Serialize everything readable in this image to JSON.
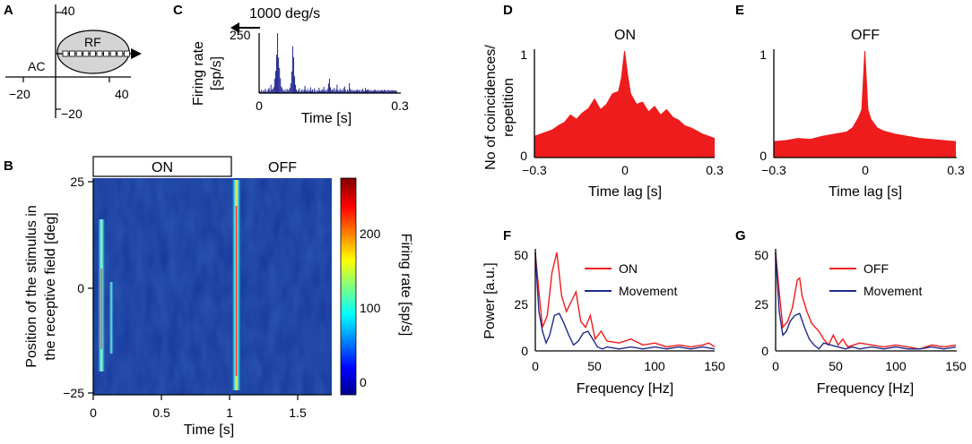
{
  "panel_letters": [
    "A",
    "B",
    "C",
    "D",
    "E",
    "F",
    "G"
  ],
  "colors": {
    "red": "#ee1c1c",
    "navy": "#1f2a8a",
    "hist": "#2b2f96",
    "rf_fill": "#d4d4d4"
  },
  "panel_a": {
    "rf_label": "RF",
    "ac_label": "AC",
    "x_ticks": [
      "−20",
      "40"
    ],
    "y_ticks": [
      "40",
      "−20"
    ]
  },
  "chart_data": [
    {
      "id": "C",
      "type": "bar",
      "title": "1000 deg/s",
      "ylabel": "Firing rate [sp/s]",
      "ylabel_lines": [
        "Firing rate",
        "[sp/s]"
      ],
      "xlabel": "Time [s]",
      "xlim": [
        0,
        0.3
      ],
      "ylim": [
        0,
        250
      ],
      "x_ticks": [
        "0",
        "0.3"
      ],
      "y_ticks": [
        "250"
      ],
      "bin_width": 0.002,
      "values": [
        8,
        6,
        14,
        5,
        12,
        7,
        18,
        10,
        4,
        15,
        22,
        9,
        35,
        14,
        18,
        25,
        60,
        92,
        160,
        250,
        148,
        105,
        62,
        28,
        20,
        12,
        8,
        15,
        5,
        18,
        10,
        14,
        22,
        40,
        90,
        195,
        150,
        70,
        35,
        15,
        8,
        12,
        20,
        5,
        10,
        16,
        6,
        14,
        30,
        12,
        8,
        18,
        7,
        12,
        24,
        9,
        15,
        6,
        20,
        10,
        5,
        13,
        8,
        22,
        11,
        7,
        16,
        12,
        26,
        9,
        14,
        8,
        18,
        40,
        60,
        24,
        10,
        16,
        12,
        22,
        8,
        15,
        35,
        12,
        7,
        18,
        10,
        14,
        9,
        20,
        28,
        12,
        6,
        15,
        8,
        42,
        18,
        10,
        14,
        8,
        12,
        10,
        9,
        15,
        12,
        10,
        14,
        6,
        12,
        18,
        10,
        8,
        22,
        12,
        14,
        16,
        10,
        13,
        9,
        11,
        8,
        12,
        15,
        10,
        9,
        14,
        8,
        12,
        10,
        13,
        11,
        9,
        15,
        10,
        12,
        8,
        14,
        11,
        10,
        12,
        9,
        13,
        10,
        12,
        11,
        9
      ]
    },
    {
      "id": "B",
      "type": "heatmap",
      "header_labels": [
        "ON",
        "OFF"
      ],
      "xlabel": "Time [s]",
      "ylabel": "Position of the stimulus in the receptive field [deg]",
      "ylabel_lines": [
        "Position of the stimulus in",
        "the receptive field [deg]"
      ],
      "xlim": [
        0,
        1.75
      ],
      "ylim": [
        -25,
        25
      ],
      "x_ticks": [
        "0",
        "0.5",
        "1",
        "1.5"
      ],
      "y_ticks": [
        "25",
        "0",
        "−25"
      ],
      "colorbar_label": "Firing rate [sp/s]",
      "colorbar_range": [
        -10,
        290
      ],
      "colorbar_ticks": [
        "200",
        "100",
        "0"
      ],
      "on_response_time": 0.06,
      "off_response_time": 1.05
    },
    {
      "id": "D",
      "type": "area",
      "title": "ON",
      "xlabel": "Time lag [s]",
      "ylabel": "No of coincidences/ repetition",
      "ylabel_lines": [
        "No of coincidences/",
        "repetition"
      ],
      "xlim": [
        -0.3,
        0.3
      ],
      "ylim": [
        0,
        1
      ],
      "x_ticks": [
        "−0.3",
        "0",
        "0.3"
      ],
      "y_ticks": [
        "1",
        "0"
      ],
      "x": [
        -0.3,
        -0.28,
        -0.26,
        -0.24,
        -0.22,
        -0.2,
        -0.18,
        -0.16,
        -0.14,
        -0.12,
        -0.1,
        -0.08,
        -0.06,
        -0.04,
        -0.02,
        -0.01,
        0,
        0.01,
        0.02,
        0.04,
        0.06,
        0.08,
        0.1,
        0.12,
        0.14,
        0.16,
        0.18,
        0.2,
        0.22,
        0.24,
        0.26,
        0.28,
        0.3
      ],
      "y": [
        0.2,
        0.22,
        0.24,
        0.26,
        0.3,
        0.33,
        0.4,
        0.36,
        0.42,
        0.46,
        0.55,
        0.45,
        0.5,
        0.6,
        0.62,
        0.75,
        1.0,
        0.78,
        0.6,
        0.5,
        0.52,
        0.43,
        0.48,
        0.4,
        0.45,
        0.38,
        0.35,
        0.3,
        0.28,
        0.25,
        0.22,
        0.2,
        0.18
      ]
    },
    {
      "id": "E",
      "type": "area",
      "title": "OFF",
      "xlabel": "Time lag [s]",
      "xlim": [
        -0.3,
        0.3
      ],
      "ylim": [
        0,
        1
      ],
      "x_ticks": [
        "−0.3",
        "0",
        "0.3"
      ],
      "y_ticks": [
        "1",
        "0"
      ],
      "x": [
        -0.3,
        -0.26,
        -0.22,
        -0.18,
        -0.14,
        -0.1,
        -0.06,
        -0.04,
        -0.02,
        -0.01,
        0,
        0.01,
        0.02,
        0.04,
        0.06,
        0.1,
        0.14,
        0.18,
        0.22,
        0.26,
        0.3
      ],
      "y": [
        0.15,
        0.16,
        0.18,
        0.17,
        0.2,
        0.22,
        0.24,
        0.28,
        0.38,
        0.45,
        1.0,
        0.45,
        0.36,
        0.28,
        0.25,
        0.22,
        0.2,
        0.18,
        0.17,
        0.16,
        0.15
      ]
    },
    {
      "id": "F",
      "type": "line",
      "xlabel": "Frequency [Hz]",
      "ylabel": "Power [a.u.]",
      "xlim": [
        0,
        150
      ],
      "ylim": [
        0,
        50
      ],
      "x_ticks": [
        "0",
        "50",
        "100",
        "150"
      ],
      "y_ticks": [
        "50",
        "25",
        "0"
      ],
      "series": [
        {
          "name": "ON",
          "color": "#ee1c1c",
          "x": [
            0,
            3,
            6,
            10,
            14,
            18,
            22,
            26,
            30,
            34,
            38,
            42,
            46,
            50,
            55,
            60,
            70,
            80,
            90,
            100,
            110,
            120,
            130,
            140,
            145,
            150
          ],
          "y": [
            50,
            30,
            12,
            18,
            40,
            50,
            28,
            20,
            25,
            30,
            15,
            12,
            18,
            6,
            10,
            5,
            4,
            6,
            3,
            4,
            2,
            3,
            2,
            3,
            4,
            2
          ]
        },
        {
          "name": "Movement",
          "color": "#1f2a8a",
          "x": [
            0,
            3,
            6,
            9,
            12,
            16,
            20,
            24,
            28,
            32,
            36,
            40,
            44,
            48,
            52,
            56,
            60,
            70,
            80,
            90,
            100,
            110,
            120,
            130,
            140,
            150
          ],
          "y": [
            50,
            20,
            10,
            4,
            8,
            18,
            19,
            14,
            8,
            3,
            5,
            9,
            10,
            6,
            2,
            1,
            2,
            1,
            2,
            1,
            2,
            1,
            2,
            1,
            2,
            1
          ]
        }
      ]
    },
    {
      "id": "G",
      "type": "line",
      "xlabel": "Frequency [Hz]",
      "xlim": [
        0,
        150
      ],
      "ylim": [
        0,
        50
      ],
      "x_ticks": [
        "0",
        "50",
        "100",
        "150"
      ],
      "y_ticks": [
        "50",
        "25",
        "0"
      ],
      "series": [
        {
          "name": "OFF",
          "color": "#ee1c1c",
          "x": [
            0,
            3,
            6,
            10,
            14,
            18,
            20,
            22,
            26,
            30,
            36,
            40,
            44,
            48,
            52,
            56,
            60,
            70,
            80,
            90,
            100,
            110,
            120,
            130,
            140,
            150
          ],
          "y": [
            50,
            30,
            12,
            15,
            22,
            36,
            37,
            28,
            20,
            14,
            10,
            6,
            3,
            8,
            3,
            6,
            2,
            4,
            3,
            2,
            3,
            2,
            1,
            3,
            2,
            3
          ]
        },
        {
          "name": "Movement",
          "color": "#1f2a8a",
          "x": [
            0,
            3,
            6,
            9,
            12,
            16,
            20,
            24,
            28,
            32,
            36,
            40,
            46,
            52,
            58,
            64,
            70,
            80,
            90,
            100,
            110,
            120,
            130,
            140,
            150
          ],
          "y": [
            50,
            20,
            8,
            10,
            15,
            18,
            19,
            12,
            6,
            3,
            1,
            4,
            3,
            2,
            1,
            2,
            1,
            2,
            1,
            2,
            1,
            1,
            2,
            1,
            2
          ]
        }
      ]
    }
  ]
}
